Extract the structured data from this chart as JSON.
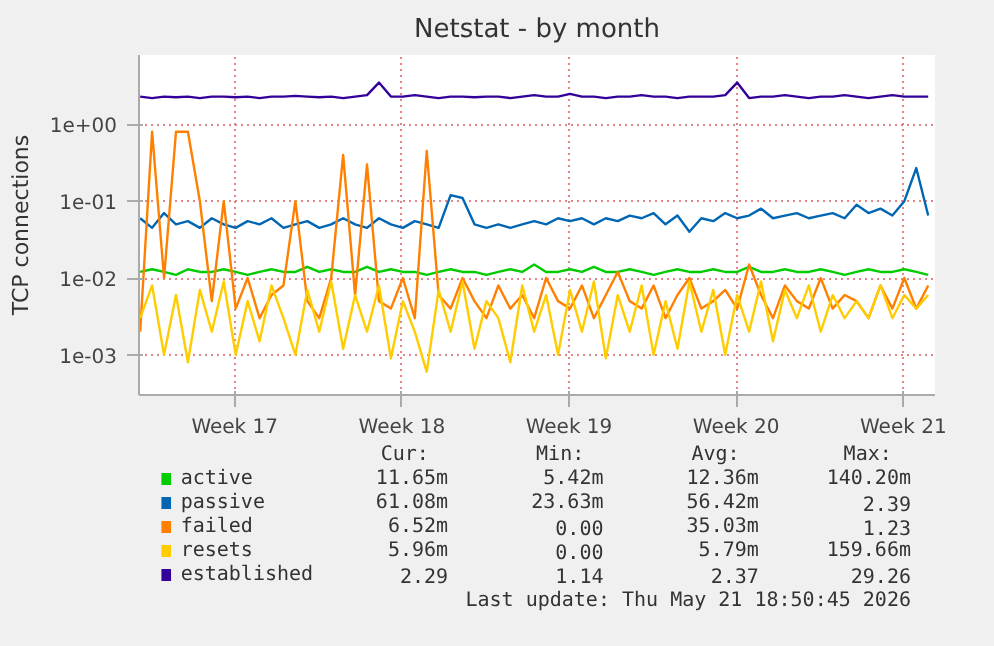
{
  "chart_data": {
    "type": "line",
    "title": "Netstat - by month",
    "ylabel": "TCP connections",
    "log": "y",
    "grid": true,
    "legend": "bottom",
    "ylim": [
      0.0003,
      8
    ],
    "yticks": [
      {
        "value": 0.001,
        "label": "1e-03"
      },
      {
        "value": 0.01,
        "label": "1e-02"
      },
      {
        "value": 0.1,
        "label": "1e-01"
      },
      {
        "value": 1,
        "label": "1e+00"
      }
    ],
    "xlim": [
      "2026-04-18T10:50",
      "2026-05-21T18:50"
    ],
    "xticks": [
      {
        "value": "2026-04-22T11:00",
        "label": "Week 17"
      },
      {
        "value": "2026-04-29T11:00",
        "label": "Week 18"
      },
      {
        "value": "2026-05-06T11:00",
        "label": "Week 19"
      },
      {
        "value": "2026-05-13T11:00",
        "label": "Week 20"
      },
      {
        "value": "2026-05-20T11:00",
        "label": "Week 21"
      }
    ],
    "x": [
      "2026-04-18T12:00",
      "2026-04-19T00:00",
      "2026-04-19T12:00",
      "2026-04-20T00:00",
      "2026-04-20T12:00",
      "2026-04-21T00:00",
      "2026-04-21T12:00",
      "2026-04-22T00:00",
      "2026-04-22T12:00",
      "2026-04-23T00:00",
      "2026-04-23T12:00",
      "2026-04-24T00:00",
      "2026-04-24T12:00",
      "2026-04-25T00:00",
      "2026-04-25T12:00",
      "2026-04-26T00:00",
      "2026-04-26T12:00",
      "2026-04-27T00:00",
      "2026-04-27T12:00",
      "2026-04-28T00:00",
      "2026-04-28T12:00",
      "2026-04-29T00:00",
      "2026-04-29T12:00",
      "2026-04-30T00:00",
      "2026-04-30T12:00",
      "2026-05-01T00:00",
      "2026-05-01T12:00",
      "2026-05-02T00:00",
      "2026-05-02T12:00",
      "2026-05-03T00:00",
      "2026-05-03T12:00",
      "2026-05-04T00:00",
      "2026-05-04T12:00",
      "2026-05-05T00:00",
      "2026-05-05T12:00",
      "2026-05-06T00:00",
      "2026-05-06T12:00",
      "2026-05-07T00:00",
      "2026-05-07T12:00",
      "2026-05-08T00:00",
      "2026-05-08T12:00",
      "2026-05-09T00:00",
      "2026-05-09T12:00",
      "2026-05-10T00:00",
      "2026-05-10T12:00",
      "2026-05-11T00:00",
      "2026-05-11T12:00",
      "2026-05-12T00:00",
      "2026-05-12T12:00",
      "2026-05-13T00:00",
      "2026-05-13T12:00",
      "2026-05-14T00:00",
      "2026-05-14T12:00",
      "2026-05-15T00:00",
      "2026-05-15T12:00",
      "2026-05-16T00:00",
      "2026-05-16T12:00",
      "2026-05-17T00:00",
      "2026-05-17T12:00",
      "2026-05-18T00:00",
      "2026-05-18T12:00",
      "2026-05-19T00:00",
      "2026-05-19T12:00",
      "2026-05-20T00:00",
      "2026-05-20T12:00",
      "2026-05-21T00:00",
      "2026-05-21T12:00"
    ],
    "series": [
      {
        "name": "active",
        "color": "#00cc00",
        "values": [
          0.012,
          0.013,
          0.012,
          0.011,
          0.013,
          0.012,
          0.012,
          0.013,
          0.012,
          0.011,
          0.012,
          0.013,
          0.012,
          0.012,
          0.014,
          0.012,
          0.013,
          0.012,
          0.012,
          0.014,
          0.012,
          0.013,
          0.012,
          0.012,
          0.011,
          0.012,
          0.013,
          0.012,
          0.012,
          0.011,
          0.012,
          0.013,
          0.012,
          0.015,
          0.012,
          0.012,
          0.013,
          0.012,
          0.014,
          0.012,
          0.012,
          0.013,
          0.012,
          0.011,
          0.012,
          0.013,
          0.012,
          0.012,
          0.013,
          0.012,
          0.012,
          0.014,
          0.012,
          0.012,
          0.013,
          0.012,
          0.012,
          0.013,
          0.012,
          0.011,
          0.012,
          0.013,
          0.012,
          0.012,
          0.013,
          0.012,
          0.011
        ]
      },
      {
        "name": "passive",
        "color": "#0066b3",
        "values": [
          0.06,
          0.045,
          0.07,
          0.05,
          0.055,
          0.045,
          0.06,
          0.05,
          0.045,
          0.055,
          0.05,
          0.06,
          0.045,
          0.05,
          0.055,
          0.045,
          0.05,
          0.06,
          0.05,
          0.045,
          0.06,
          0.05,
          0.045,
          0.055,
          0.05,
          0.045,
          0.12,
          0.11,
          0.05,
          0.045,
          0.05,
          0.045,
          0.05,
          0.055,
          0.05,
          0.06,
          0.055,
          0.06,
          0.05,
          0.06,
          0.055,
          0.065,
          0.06,
          0.07,
          0.05,
          0.065,
          0.04,
          0.06,
          0.055,
          0.07,
          0.06,
          0.065,
          0.08,
          0.06,
          0.065,
          0.07,
          0.06,
          0.065,
          0.07,
          0.06,
          0.09,
          0.07,
          0.08,
          0.065,
          0.1,
          0.27,
          0.065
        ]
      },
      {
        "name": "failed",
        "color": "#ff8000",
        "values": [
          0.002,
          0.8,
          0.01,
          0.8,
          0.8,
          0.1,
          0.005,
          0.1,
          0.004,
          0.01,
          0.003,
          0.006,
          0.008,
          0.1,
          0.005,
          0.003,
          0.01,
          0.4,
          0.006,
          0.3,
          0.005,
          0.004,
          0.01,
          0.003,
          0.45,
          0.006,
          0.004,
          0.01,
          0.005,
          0.003,
          0.008,
          0.004,
          0.006,
          0.003,
          0.01,
          0.005,
          0.004,
          0.008,
          0.003,
          0.006,
          0.012,
          0.005,
          0.004,
          0.008,
          0.003,
          0.006,
          0.01,
          0.004,
          0.005,
          0.007,
          0.004,
          0.015,
          0.006,
          0.003,
          0.008,
          0.005,
          0.004,
          0.01,
          0.004,
          0.006,
          0.005,
          0.003,
          0.008,
          0.004,
          0.01,
          0.004,
          0.008
        ]
      },
      {
        "name": "resets",
        "color": "#ffcc00",
        "values": [
          0.003,
          0.008,
          0.001,
          0.006,
          0.0008,
          0.007,
          0.002,
          0.009,
          0.001,
          0.005,
          0.0015,
          0.008,
          0.003,
          0.001,
          0.007,
          0.002,
          0.009,
          0.0012,
          0.006,
          0.002,
          0.008,
          0.0009,
          0.005,
          0.002,
          0.0006,
          0.007,
          0.002,
          0.009,
          0.0012,
          0.005,
          0.003,
          0.0008,
          0.008,
          0.002,
          0.006,
          0.001,
          0.007,
          0.002,
          0.009,
          0.0009,
          0.006,
          0.002,
          0.008,
          0.001,
          0.005,
          0.0012,
          0.009,
          0.002,
          0.007,
          0.001,
          0.006,
          0.002,
          0.009,
          0.0015,
          0.007,
          0.003,
          0.008,
          0.002,
          0.006,
          0.003,
          0.005,
          0.003,
          0.008,
          0.003,
          0.006,
          0.004,
          0.006
        ]
      },
      {
        "name": "established",
        "color": "#330099",
        "values": [
          2.3,
          2.2,
          2.3,
          2.25,
          2.3,
          2.2,
          2.3,
          2.3,
          2.25,
          2.3,
          2.2,
          2.3,
          2.3,
          2.35,
          2.3,
          2.25,
          2.3,
          2.2,
          2.3,
          2.4,
          3.5,
          2.3,
          2.3,
          2.4,
          2.3,
          2.2,
          2.3,
          2.3,
          2.25,
          2.3,
          2.3,
          2.2,
          2.3,
          2.4,
          2.3,
          2.3,
          2.5,
          2.3,
          2.3,
          2.2,
          2.3,
          2.3,
          2.4,
          2.3,
          2.3,
          2.2,
          2.3,
          2.3,
          2.3,
          2.4,
          3.5,
          2.2,
          2.3,
          2.3,
          2.4,
          2.3,
          2.2,
          2.3,
          2.3,
          2.4,
          2.3,
          2.2,
          2.3,
          2.4,
          2.3,
          2.3,
          2.3
        ]
      }
    ],
    "annotations": [
      "Cur:",
      "Min:",
      "Avg:",
      "Max:",
      "11.65m",
      "5.42m",
      "12.36m",
      "140.20m",
      "61.08m",
      "23.63m",
      "56.42m",
      "2.39",
      "6.52m",
      "0.00",
      "35.03m",
      "1.23",
      "5.96m",
      "0.00",
      "5.79m",
      "159.66m",
      "2.29",
      "1.14",
      "2.37",
      "29.26",
      "Last update: Thu May 21 18:50:45 2026"
    ]
  }
}
